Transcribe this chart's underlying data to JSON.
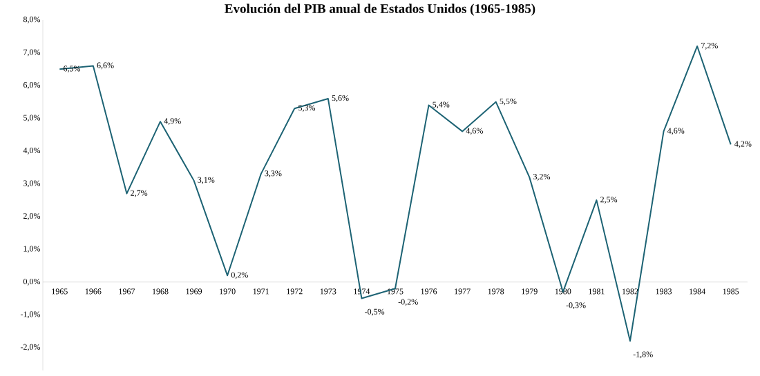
{
  "chart_data": {
    "type": "line",
    "title": "Evolución del PIB anual de Estados Unidos (1965-1985)",
    "categories": [
      "1965",
      "1966",
      "1967",
      "1968",
      "1969",
      "1970",
      "1971",
      "1972",
      "1973",
      "1974",
      "1975",
      "1976",
      "1977",
      "1978",
      "1979",
      "1980",
      "1981",
      "1982",
      "1983",
      "1984",
      "1985"
    ],
    "series": [
      {
        "color": "#1d6374",
        "values": [
          6.5,
          6.6,
          2.7,
          4.9,
          3.1,
          0.2,
          3.3,
          5.3,
          5.6,
          -0.5,
          -0.2,
          5.4,
          4.6,
          5.5,
          3.2,
          -0.3,
          2.5,
          -1.8,
          4.6,
          7.2,
          4.2
        ],
        "value_labels": [
          "6,5%",
          "6,6%",
          "2,7%",
          "4,9%",
          "3,1%",
          "0,2%",
          "3,3%",
          "5,3%",
          "5,6%",
          "-0,5%",
          "-0,2%",
          "5,4%",
          "4,6%",
          "5,5%",
          "3,2%",
          "-0,3%",
          "2,5%",
          "-1,8%",
          "4,6%",
          "7,2%",
          "4,2%"
        ]
      }
    ],
    "ylim": [
      -2.7,
      8
    ],
    "yticks": [
      {
        "value": -2,
        "label": "-2,0%"
      },
      {
        "value": -1,
        "label": "-1,0%"
      },
      {
        "value": 0,
        "label": "0,0%"
      },
      {
        "value": 1,
        "label": "1,0%"
      },
      {
        "value": 2,
        "label": "2,0%"
      },
      {
        "value": 3,
        "label": "3,0%"
      },
      {
        "value": 4,
        "label": "4,0%"
      },
      {
        "value": 5,
        "label": "5,0%"
      },
      {
        "value": 6,
        "label": "6,0%"
      },
      {
        "value": 7,
        "label": "7,0%"
      },
      {
        "value": 8,
        "label": "8,0%"
      }
    ],
    "grid": false,
    "marker": "none",
    "line_style": "solid"
  }
}
